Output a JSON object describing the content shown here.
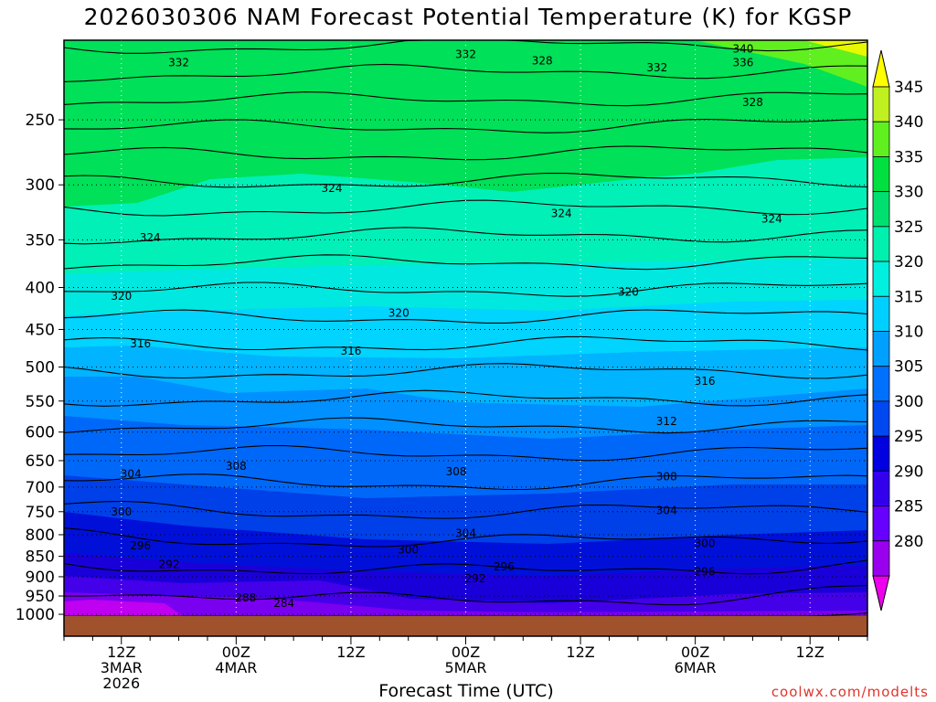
{
  "title": "2026030306 NAM Forecast Potential Temperature (K) for KGSP",
  "credit": "coolwx.com/modelts",
  "chart_data": {
    "type": "heatmap",
    "title": "2026030306 NAM Forecast Potential Temperature (K) for KGSP",
    "xlabel": "Forecast Time (UTC)",
    "ylabel": "",
    "y_scale": "log-pressure (hPa), reversed",
    "ylim": [
      1005,
      200
    ],
    "y_ticks": [
      250,
      300,
      350,
      400,
      450,
      500,
      550,
      600,
      650,
      700,
      750,
      800,
      850,
      900,
      950,
      1000
    ],
    "x_ticks": [
      {
        "time": "2026-03-03 12Z",
        "lines": [
          "12Z",
          "3MAR",
          "2026"
        ]
      },
      {
        "time": "2026-03-04 00Z",
        "lines": [
          "00Z",
          "4MAR"
        ]
      },
      {
        "time": "2026-03-04 12Z",
        "lines": [
          "12Z"
        ]
      },
      {
        "time": "2026-03-05 00Z",
        "lines": [
          "00Z",
          "5MAR"
        ]
      },
      {
        "time": "2026-03-05 12Z",
        "lines": [
          "12Z"
        ]
      },
      {
        "time": "2026-03-06 00Z",
        "lines": [
          "00Z",
          "6MAR"
        ]
      },
      {
        "time": "2026-03-06 12Z",
        "lines": [
          "12Z"
        ]
      }
    ],
    "x_range": [
      "2026-03-03 06Z",
      "2026-03-06 18Z"
    ],
    "grid": true,
    "colorbar": {
      "levels": [
        280,
        285,
        290,
        295,
        300,
        305,
        310,
        315,
        320,
        325,
        330,
        335,
        340,
        345
      ],
      "labels": [
        "345",
        "340",
        "335",
        "330",
        "325",
        "320",
        "315",
        "310",
        "305",
        "300",
        "295",
        "290",
        "285",
        "280"
      ],
      "colors": [
        "#ee00ee",
        "#9900ee",
        "#6600ff",
        "#3300ee",
        "#0000e0",
        "#0048f0",
        "#0070ff",
        "#00a0ff",
        "#00d0ff",
        "#00f0e0",
        "#00f0b0",
        "#00e070",
        "#00e040",
        "#60f020",
        "#c0f020",
        "#ffff00"
      ]
    },
    "isotherms": [
      {
        "theta": 340,
        "p_start": 203,
        "p_end": 215
      },
      {
        "theta": 336,
        "p_start": 208,
        "p_end": 222
      },
      {
        "theta": 332,
        "p_start": 212,
        "p_end": 230
      },
      {
        "theta": 328,
        "p_start": 262,
        "p_end": 248
      },
      {
        "theta": 324,
        "p_start": 352,
        "p_end": 300
      },
      {
        "theta": 320,
        "p_start": 420,
        "p_end": 400
      },
      {
        "theta": 316,
        "p_start": 490,
        "p_end": 520
      },
      {
        "theta": 312,
        "p_start": 580,
        "p_end": 580
      },
      {
        "theta": 308,
        "p_start": 650,
        "p_end": 670
      },
      {
        "theta": 304,
        "p_start": 690,
        "p_end": 760
      },
      {
        "theta": 300,
        "p_start": 750,
        "p_end": 800
      },
      {
        "theta": 296,
        "p_start": 830,
        "p_end": 870
      },
      {
        "theta": 292,
        "p_start": 880,
        "p_end": 940
      },
      {
        "theta": 288,
        "p_start": 950,
        "p_end": 990
      },
      {
        "theta": 284,
        "p_start": 985,
        "p_end": 1000
      }
    ],
    "contour_labels": [
      {
        "text": "332",
        "time_h": 12,
        "p": 213
      },
      {
        "text": "332",
        "time_h": 42,
        "p": 208
      },
      {
        "text": "328",
        "time_h": 50,
        "p": 212
      },
      {
        "text": "332",
        "time_h": 62,
        "p": 216
      },
      {
        "text": "340",
        "time_h": 71,
        "p": 205
      },
      {
        "text": "336",
        "time_h": 71,
        "p": 213
      },
      {
        "text": "328",
        "time_h": 72,
        "p": 238
      },
      {
        "text": "324",
        "time_h": 28,
        "p": 303
      },
      {
        "text": "324",
        "time_h": 52,
        "p": 325
      },
      {
        "text": "324",
        "time_h": 74,
        "p": 330
      },
      {
        "text": "324",
        "time_h": 9,
        "p": 348
      },
      {
        "text": "320",
        "time_h": 6,
        "p": 410
      },
      {
        "text": "320",
        "time_h": 35,
        "p": 430
      },
      {
        "text": "320",
        "time_h": 59,
        "p": 405
      },
      {
        "text": "316",
        "time_h": 8,
        "p": 468
      },
      {
        "text": "316",
        "time_h": 30,
        "p": 478
      },
      {
        "text": "316",
        "time_h": 67,
        "p": 520
      },
      {
        "text": "312",
        "time_h": 63,
        "p": 582
      },
      {
        "text": "308",
        "time_h": 18,
        "p": 660
      },
      {
        "text": "308",
        "time_h": 41,
        "p": 670
      },
      {
        "text": "308",
        "time_h": 63,
        "p": 680
      },
      {
        "text": "304",
        "time_h": 7,
        "p": 675
      },
      {
        "text": "304",
        "time_h": 63,
        "p": 748
      },
      {
        "text": "304",
        "time_h": 42,
        "p": 797
      },
      {
        "text": "300",
        "time_h": 6,
        "p": 750
      },
      {
        "text": "300",
        "time_h": 36,
        "p": 835
      },
      {
        "text": "300",
        "time_h": 67,
        "p": 820
      },
      {
        "text": "296",
        "time_h": 8,
        "p": 825
      },
      {
        "text": "296",
        "time_h": 46,
        "p": 875
      },
      {
        "text": "296",
        "time_h": 67,
        "p": 888
      },
      {
        "text": "292",
        "time_h": 11,
        "p": 870
      },
      {
        "text": "292",
        "time_h": 43,
        "p": 905
      },
      {
        "text": "288",
        "time_h": 19,
        "p": 955
      },
      {
        "text": "284",
        "time_h": 23,
        "p": 970
      }
    ]
  }
}
